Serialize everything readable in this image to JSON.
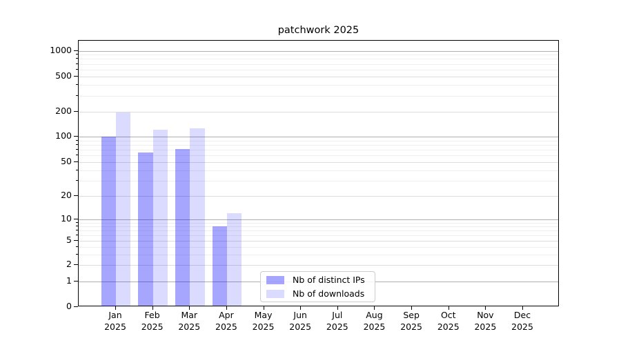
{
  "title": "patchwork 2025",
  "legend": {
    "items": [
      {
        "label": "Nb of distinct IPs",
        "color": "rgba(0,0,255,0.35)"
      },
      {
        "label": "Nb of downloads",
        "color": "rgba(0,0,255,0.14)"
      }
    ]
  },
  "axes": {
    "y": {
      "scale": "log (with 0 baseline)",
      "tick_labels": [
        "0",
        "1",
        "2",
        "5",
        "10",
        "20",
        "50",
        "100",
        "200",
        "500",
        "1000"
      ]
    },
    "x": {
      "month_names": [
        "Jan",
        "Feb",
        "Mar",
        "Apr",
        "May",
        "Jun",
        "Jul",
        "Aug",
        "Sep",
        "Oct",
        "Nov",
        "Dec"
      ],
      "year": "2025"
    }
  },
  "chart_data": {
    "type": "bar",
    "title": "patchwork 2025",
    "categories": [
      "Jan 2025",
      "Feb 2025",
      "Mar 2025",
      "Apr 2025",
      "May 2025",
      "Jun 2025",
      "Jul 2025",
      "Aug 2025",
      "Sep 2025",
      "Oct 2025",
      "Nov 2025",
      "Dec 2025"
    ],
    "series": [
      {
        "name": "Nb of distinct IPs",
        "color": "rgba(0,0,255,0.35)",
        "values": [
          100,
          65,
          72,
          8,
          0,
          0,
          0,
          0,
          0,
          0,
          0,
          0
        ]
      },
      {
        "name": "Nb of downloads",
        "color": "rgba(0,0,255,0.14)",
        "values": [
          195,
          122,
          126,
          12,
          0,
          0,
          0,
          0,
          0,
          0,
          0,
          0
        ]
      }
    ],
    "xlabel": "",
    "ylabel": "",
    "yticks": [
      0,
      1,
      2,
      5,
      10,
      20,
      50,
      100,
      200,
      500,
      1000
    ],
    "ylim": [
      0,
      1500
    ],
    "grid": "horizontal major + minor (log decades)",
    "legend_position": "lower center"
  }
}
